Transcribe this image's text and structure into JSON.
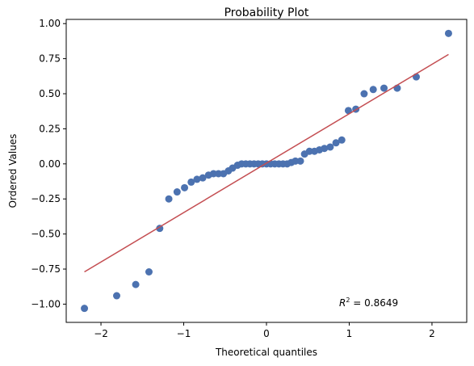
{
  "chart_data": {
    "type": "scatter",
    "title": "Probability Plot",
    "xlabel": "Theoretical quantiles",
    "ylabel": "Ordered Values",
    "xlim": [
      -2.42,
      2.42
    ],
    "ylim": [
      -1.13,
      1.03
    ],
    "xticks": [
      -2,
      -1,
      0,
      1,
      2
    ],
    "xtick_labels": [
      "−2",
      "−1",
      "0",
      "1",
      "2"
    ],
    "yticks": [
      -1.0,
      -0.75,
      -0.5,
      -0.25,
      0.0,
      0.25,
      0.5,
      0.75,
      1.0
    ],
    "ytick_labels": [
      "−1.00",
      "−0.75",
      "−0.50",
      "−0.25",
      "0.00",
      "0.25",
      "0.50",
      "0.75",
      "1.00"
    ],
    "grid": false,
    "marker_color": "#4c72b0",
    "line_color": "#c44e52",
    "points": [
      {
        "x": -2.2,
        "y": -1.03
      },
      {
        "x": -1.81,
        "y": -0.94
      },
      {
        "x": -1.58,
        "y": -0.86
      },
      {
        "x": -1.42,
        "y": -0.77
      },
      {
        "x": -1.29,
        "y": -0.46
      },
      {
        "x": -1.18,
        "y": -0.25
      },
      {
        "x": -1.08,
        "y": -0.2
      },
      {
        "x": -0.99,
        "y": -0.17
      },
      {
        "x": -0.91,
        "y": -0.13
      },
      {
        "x": -0.84,
        "y": -0.11
      },
      {
        "x": -0.77,
        "y": -0.1
      },
      {
        "x": -0.7,
        "y": -0.08
      },
      {
        "x": -0.64,
        "y": -0.07
      },
      {
        "x": -0.58,
        "y": -0.07
      },
      {
        "x": -0.52,
        "y": -0.07
      },
      {
        "x": -0.46,
        "y": -0.05
      },
      {
        "x": -0.41,
        "y": -0.03
      },
      {
        "x": -0.35,
        "y": -0.01
      },
      {
        "x": -0.3,
        "y": 0.0
      },
      {
        "x": -0.25,
        "y": 0.0
      },
      {
        "x": -0.2,
        "y": 0.0
      },
      {
        "x": -0.15,
        "y": 0.0
      },
      {
        "x": -0.1,
        "y": 0.0
      },
      {
        "x": -0.05,
        "y": 0.0
      },
      {
        "x": 0.0,
        "y": 0.0
      },
      {
        "x": 0.05,
        "y": 0.0
      },
      {
        "x": 0.1,
        "y": 0.0
      },
      {
        "x": 0.15,
        "y": 0.0
      },
      {
        "x": 0.2,
        "y": 0.0
      },
      {
        "x": 0.25,
        "y": 0.0
      },
      {
        "x": 0.3,
        "y": 0.01
      },
      {
        "x": 0.35,
        "y": 0.02
      },
      {
        "x": 0.41,
        "y": 0.02
      },
      {
        "x": 0.46,
        "y": 0.07
      },
      {
        "x": 0.52,
        "y": 0.09
      },
      {
        "x": 0.58,
        "y": 0.09
      },
      {
        "x": 0.64,
        "y": 0.1
      },
      {
        "x": 0.7,
        "y": 0.11
      },
      {
        "x": 0.77,
        "y": 0.12
      },
      {
        "x": 0.84,
        "y": 0.15
      },
      {
        "x": 0.91,
        "y": 0.17
      },
      {
        "x": 0.99,
        "y": 0.38
      },
      {
        "x": 1.08,
        "y": 0.39
      },
      {
        "x": 1.18,
        "y": 0.5
      },
      {
        "x": 1.29,
        "y": 0.53
      },
      {
        "x": 1.42,
        "y": 0.54
      },
      {
        "x": 1.58,
        "y": 0.54
      },
      {
        "x": 1.81,
        "y": 0.62
      },
      {
        "x": 2.2,
        "y": 0.93
      }
    ],
    "fit_line": {
      "x": [
        -2.2,
        2.2
      ],
      "y": [
        -0.77,
        0.78
      ]
    },
    "annotation": {
      "prefix": "R",
      "superscript": "2",
      "text": " = 0.8649"
    }
  }
}
